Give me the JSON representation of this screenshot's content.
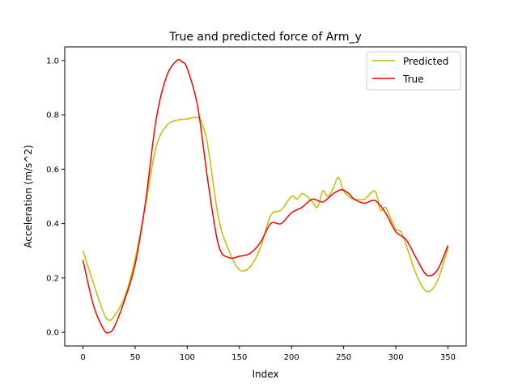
{
  "chart_data": {
    "type": "line",
    "title": "True and predicted force of Arm_y",
    "xlabel": "Index",
    "ylabel": "Acceleration (m/s^2)",
    "xlim": [
      -17.5,
      367.5
    ],
    "ylim": [
      -0.05,
      1.05
    ],
    "xticks": [
      0,
      50,
      100,
      150,
      200,
      250,
      300,
      350
    ],
    "yticks": [
      0.0,
      0.2,
      0.4,
      0.6,
      0.8,
      1.0
    ],
    "xtick_labels": [
      "0",
      "50",
      "100",
      "150",
      "200",
      "250",
      "300",
      "350"
    ],
    "ytick_labels": [
      "0.0",
      "0.2",
      "0.4",
      "0.6",
      "0.8",
      "1.0"
    ],
    "grid": false,
    "legend_position": "upper right",
    "series": [
      {
        "name": "Predicted",
        "color": "#bfbf00",
        "x": [
          0,
          10,
          20,
          25,
          30,
          40,
          50,
          60,
          70,
          80,
          90,
          100,
          110,
          115,
          120,
          130,
          140,
          150,
          160,
          170,
          180,
          190,
          200,
          205,
          210,
          215,
          220,
          225,
          230,
          235,
          240,
          245,
          250,
          255,
          260,
          270,
          280,
          285,
          290,
          295,
          300,
          305,
          310,
          320,
          330,
          340,
          350
        ],
        "y": [
          0.3,
          0.18,
          0.07,
          0.045,
          0.06,
          0.13,
          0.27,
          0.47,
          0.68,
          0.76,
          0.78,
          0.785,
          0.79,
          0.76,
          0.68,
          0.42,
          0.3,
          0.23,
          0.24,
          0.31,
          0.43,
          0.45,
          0.5,
          0.49,
          0.51,
          0.5,
          0.48,
          0.46,
          0.52,
          0.5,
          0.53,
          0.57,
          0.52,
          0.5,
          0.49,
          0.49,
          0.52,
          0.45,
          0.46,
          0.42,
          0.38,
          0.37,
          0.32,
          0.21,
          0.15,
          0.19,
          0.31
        ]
      },
      {
        "name": "True",
        "color": "#ff0000",
        "x": [
          0,
          10,
          20,
          25,
          30,
          40,
          50,
          60,
          70,
          80,
          90,
          95,
          100,
          110,
          120,
          130,
          140,
          150,
          160,
          170,
          180,
          190,
          200,
          210,
          220,
          230,
          240,
          248,
          255,
          260,
          270,
          280,
          290,
          300,
          310,
          320,
          330,
          340,
          350
        ],
        "y": [
          0.265,
          0.1,
          0.01,
          0.0,
          0.02,
          0.12,
          0.25,
          0.48,
          0.78,
          0.94,
          1.0,
          0.995,
          0.97,
          0.83,
          0.55,
          0.32,
          0.275,
          0.28,
          0.29,
          0.33,
          0.4,
          0.4,
          0.44,
          0.46,
          0.49,
          0.48,
          0.51,
          0.525,
          0.51,
          0.49,
          0.475,
          0.485,
          0.44,
          0.37,
          0.34,
          0.27,
          0.21,
          0.23,
          0.32
        ]
      }
    ]
  }
}
